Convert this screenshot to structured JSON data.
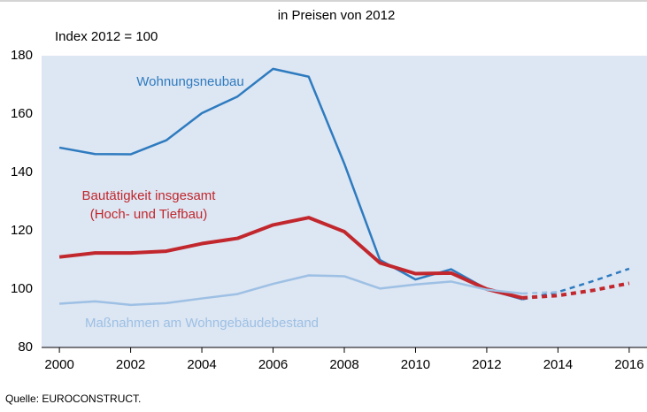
{
  "chart_data": {
    "type": "line",
    "title": "in Preisen von 2012",
    "ylabel": "Index 2012 = 100",
    "source": "Quelle: EUROCONSTRUCT.",
    "x": [
      2000,
      2001,
      2002,
      2003,
      2004,
      2005,
      2006,
      2007,
      2008,
      2009,
      2010,
      2011,
      2012,
      2013,
      2014,
      2015,
      2016
    ],
    "forecast_from": 2013,
    "series": [
      {
        "name": [
          "Wohnungsneubau"
        ],
        "color": "#2e7bbf",
        "width": 2.5,
        "values": [
          148.5,
          146.3,
          146.2,
          151,
          160.3,
          166,
          175.5,
          172.8,
          143,
          110,
          103.3,
          106.8,
          100,
          96.5,
          99,
          102.8,
          107
        ]
      },
      {
        "name": [
          "Bautätigkeit insgesamt",
          "(Hoch- und Tiefbau)"
        ],
        "color": "#c1272d",
        "width": 4,
        "values": [
          111,
          112.4,
          112.4,
          113,
          115.6,
          117.4,
          122,
          124.5,
          119.7,
          109,
          105.3,
          105.5,
          100,
          97,
          97.8,
          99.6,
          102
        ]
      },
      {
        "name": [
          "Maßnahmen am Wohngebäudebestand"
        ],
        "color": "#9dc0e4",
        "width": 2.5,
        "values": [
          95,
          95.8,
          94.6,
          95.2,
          96.8,
          98.3,
          101.8,
          104.7,
          104.4,
          100.2,
          101.6,
          102.6,
          99.8,
          98.5,
          99,
          null,
          null
        ]
      }
    ],
    "xlim": [
      1999.5,
      2016.5
    ],
    "xticks": [
      2000,
      2002,
      2004,
      2006,
      2008,
      2010,
      2012,
      2014,
      2016
    ],
    "ylim": [
      80,
      180
    ],
    "yticks": [
      80,
      100,
      120,
      140,
      160,
      180
    ],
    "grid": false,
    "background": "#dde6f3"
  }
}
